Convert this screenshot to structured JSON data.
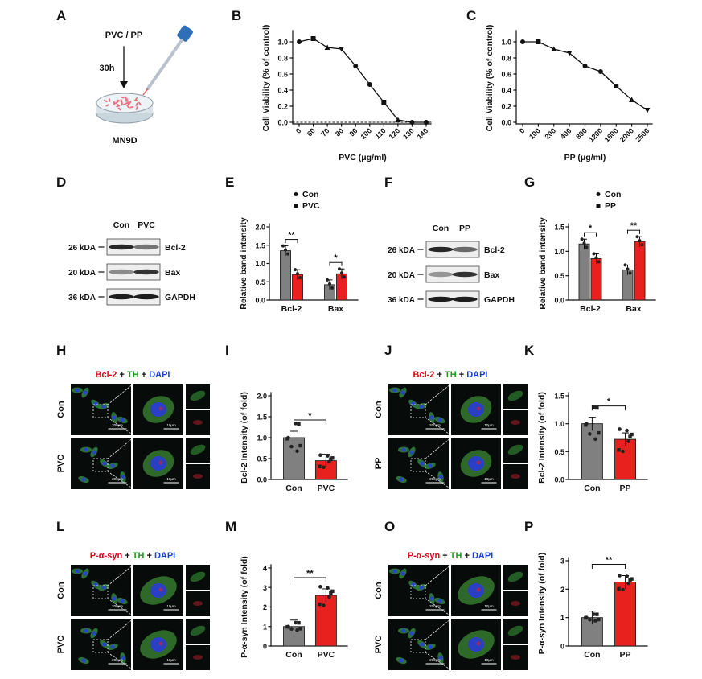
{
  "panel_letters": [
    "A",
    "B",
    "C",
    "D",
    "E",
    "F",
    "G",
    "H",
    "I",
    "J",
    "K",
    "L",
    "M",
    "O",
    "P"
  ],
  "schematic": {
    "treatment": "PVC / PP",
    "duration": "30h",
    "cell_line": "MN9D"
  },
  "western": {
    "D": {
      "lanes": [
        "Con",
        "PVC"
      ],
      "bands": [
        {
          "mw": "26 kDA",
          "protein": "Bcl-2"
        },
        {
          "mw": "20 kDA",
          "protein": "Bax"
        },
        {
          "mw": "36 kDA",
          "protein": "GAPDH"
        }
      ]
    },
    "F": {
      "lanes": [
        "Con",
        "PP"
      ],
      "bands": [
        {
          "mw": "26 kDA",
          "protein": "Bcl-2"
        },
        {
          "mw": "20 kDA",
          "protein": "Bax"
        },
        {
          "mw": "36 kDA",
          "protein": "GAPDH"
        }
      ]
    }
  },
  "stain_titles": {
    "H": [
      {
        "t": "Bcl-2",
        "c": "#e3001b"
      },
      {
        "t": " + ",
        "c": "#111111"
      },
      {
        "t": "TH",
        "c": "#1f9a1f"
      },
      {
        "t": " + ",
        "c": "#111111"
      },
      {
        "t": "DAPI",
        "c": "#1a3fd6"
      }
    ],
    "J": [
      {
        "t": "Bcl-2",
        "c": "#e3001b"
      },
      {
        "t": " + ",
        "c": "#111111"
      },
      {
        "t": "TH",
        "c": "#1f9a1f"
      },
      {
        "t": " + ",
        "c": "#111111"
      },
      {
        "t": "DAPI",
        "c": "#1a3fd6"
      }
    ],
    "L": [
      {
        "t": "P-α-syn",
        "c": "#e3001b"
      },
      {
        "t": " + ",
        "c": "#111111"
      },
      {
        "t": "TH",
        "c": "#1f9a1f"
      },
      {
        "t": " + ",
        "c": "#111111"
      },
      {
        "t": "DAPI",
        "c": "#1a3fd6"
      }
    ],
    "O": [
      {
        "t": "P-α-syn",
        "c": "#e3001b"
      },
      {
        "t": " + ",
        "c": "#111111"
      },
      {
        "t": "TH",
        "c": "#1f9a1f"
      },
      {
        "t": " + ",
        "c": "#111111"
      },
      {
        "t": "DAPI",
        "c": "#1a3fd6"
      }
    ]
  },
  "micrographs": {
    "H": {
      "rows": [
        "Con",
        "PVC"
      ],
      "scale_large": "200μm",
      "scale_zoom": "10μm"
    },
    "J": {
      "rows": [
        "Con",
        "PP"
      ],
      "scale_large": "200μm",
      "scale_zoom": "10μm"
    },
    "L": {
      "rows": [
        "Con",
        "PVC"
      ],
      "scale_large": "200μm",
      "scale_zoom": "10μm"
    },
    "O": {
      "rows": [
        "Con",
        "PVC"
      ],
      "scale_large": "200μm",
      "scale_zoom": "10μm"
    }
  },
  "colors": {
    "con_bar": "#808080",
    "treat_bar": "#e8201e",
    "dots": "#222222"
  },
  "chart_data": [
    {
      "panel": "B",
      "type": "line",
      "x": [
        "0",
        "60",
        "70",
        "80",
        "90",
        "100",
        "110",
        "120",
        "130",
        "140"
      ],
      "values": [
        1.0,
        1.04,
        0.93,
        0.91,
        0.7,
        0.47,
        0.25,
        0.03,
        0.0,
        0.0
      ],
      "xlabel": "PVC (μg/ml)",
      "ylabel": "Cell Viability (% of control)",
      "yticks": [
        "0.0",
        "0.2",
        "0.4",
        "0.6",
        "0.8",
        "1.0"
      ],
      "ylim": [
        0,
        1.1
      ],
      "baseline": 0.0
    },
    {
      "panel": "C",
      "type": "line",
      "x": [
        "0",
        "100",
        "200",
        "400",
        "800",
        "1200",
        "1600",
        "2000",
        "2500"
      ],
      "values": [
        1.0,
        1.0,
        0.91,
        0.86,
        0.7,
        0.63,
        0.45,
        0.28,
        0.15
      ],
      "xlabel": "PP (μg/ml)",
      "ylabel": "Cell Viability (% of control)",
      "yticks": [
        "0.0",
        "0.2",
        "0.4",
        "0.6",
        "0.8",
        "1.0"
      ],
      "ylim": [
        0,
        1.1
      ]
    },
    {
      "panel": "E",
      "type": "bar",
      "categories": [
        "Bcl-2",
        "Bax"
      ],
      "series": [
        {
          "name": "Con",
          "values": [
            1.35,
            0.42
          ]
        },
        {
          "name": "PVC",
          "values": [
            0.7,
            0.72
          ]
        }
      ],
      "ylabel": "Relative band intensity",
      "yticks": [
        "0.0",
        "0.5",
        "1.0",
        "1.5",
        "2.0"
      ],
      "ylim": [
        0,
        2.0
      ],
      "sig": [
        "**",
        "*"
      ]
    },
    {
      "panel": "G",
      "type": "bar",
      "categories": [
        "Bcl-2",
        "Bax"
      ],
      "series": [
        {
          "name": "Con",
          "values": [
            1.15,
            0.62
          ]
        },
        {
          "name": "PP",
          "values": [
            0.85,
            1.2
          ]
        }
      ],
      "ylabel": "Relative band intensity",
      "yticks": [
        "0.0",
        "0.5",
        "1.0",
        "1.5"
      ],
      "ylim": [
        0,
        1.5
      ],
      "sig": [
        "*",
        "**"
      ]
    },
    {
      "panel": "I",
      "type": "bar",
      "categories": [
        "Con",
        "PVC"
      ],
      "values": [
        1.0,
        0.45
      ],
      "ylabel": "Bcl-2 Intensity (of fold)",
      "yticks": [
        "0.0",
        "0.5",
        "1.0",
        "1.5",
        "2.0"
      ],
      "ylim": [
        0,
        2.0
      ],
      "sig": "*"
    },
    {
      "panel": "K",
      "type": "bar",
      "categories": [
        "Con",
        "PP"
      ],
      "values": [
        1.0,
        0.72
      ],
      "ylabel": "Bcl-2 Intensity (of fold)",
      "yticks": [
        "0.0",
        "0.5",
        "1.0",
        "1.5"
      ],
      "ylim": [
        0,
        1.5
      ],
      "sig": "*"
    },
    {
      "panel": "M",
      "type": "bar",
      "categories": [
        "Con",
        "PVC"
      ],
      "values": [
        1.0,
        2.6
      ],
      "ylabel": "P-α-syn Intensity (of fold)",
      "yticks": [
        "0",
        "1",
        "2",
        "3",
        "4"
      ],
      "ylim": [
        0,
        4
      ],
      "sig": "**"
    },
    {
      "panel": "P",
      "type": "bar",
      "categories": [
        "Con",
        "PP"
      ],
      "values": [
        1.0,
        2.25
      ],
      "ylabel": "P-α-syn Intensity (of fold)",
      "yticks": [
        "0",
        "1",
        "2",
        "3"
      ],
      "ylim": [
        0,
        3
      ],
      "sig": "**"
    }
  ]
}
